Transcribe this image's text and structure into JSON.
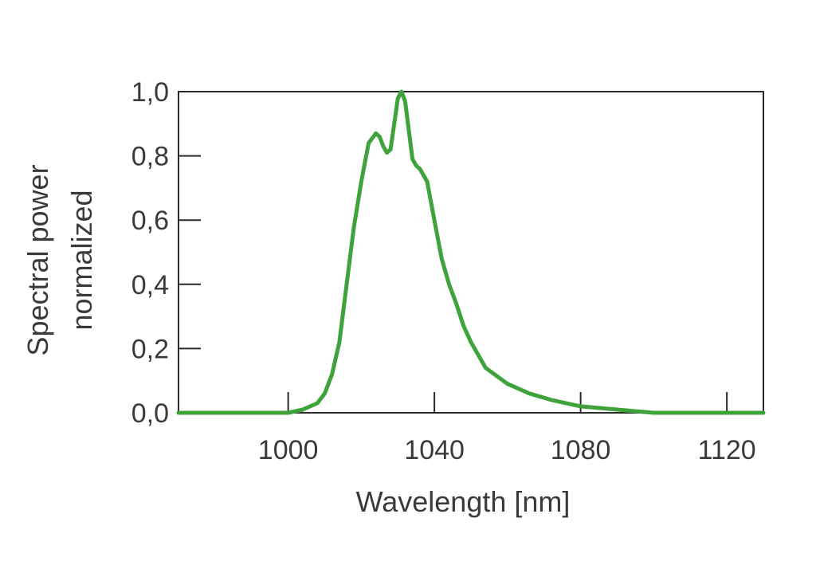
{
  "chart_data": {
    "type": "line",
    "title": "",
    "xlabel": "Wavelength [nm]",
    "ylabel_lines": [
      "Spectral power",
      "normalized"
    ],
    "xlim": [
      970,
      1130
    ],
    "ylim": [
      0,
      1.0
    ],
    "x_ticks": [
      1000,
      1040,
      1080,
      1120
    ],
    "x_tick_labels": [
      "1000",
      "1040",
      "1080",
      "1120"
    ],
    "y_ticks": [
      0,
      0.2,
      0.4,
      0.6,
      0.8,
      1.0
    ],
    "y_tick_labels": [
      "0,0",
      "0,2",
      "0,4",
      "0,6",
      "0,8",
      "1,0"
    ],
    "grid": false,
    "series": [
      {
        "color": "#3da33a",
        "x": [
          970,
          1000,
          1004,
          1008,
          1010,
          1012,
          1014,
          1016,
          1018,
          1020,
          1022,
          1024,
          1025,
          1026,
          1027,
          1028,
          1029,
          1030,
          1031,
          1032,
          1033,
          1034,
          1035,
          1036,
          1038,
          1040,
          1042,
          1044,
          1046,
          1048,
          1050,
          1054,
          1060,
          1066,
          1072,
          1080,
          1090,
          1100,
          1130
        ],
        "y": [
          0.0,
          0.0,
          0.01,
          0.03,
          0.06,
          0.12,
          0.22,
          0.4,
          0.58,
          0.72,
          0.84,
          0.87,
          0.86,
          0.83,
          0.81,
          0.82,
          0.9,
          0.98,
          1.0,
          0.97,
          0.88,
          0.79,
          0.77,
          0.76,
          0.72,
          0.6,
          0.48,
          0.4,
          0.34,
          0.27,
          0.22,
          0.14,
          0.09,
          0.06,
          0.04,
          0.02,
          0.01,
          0.0,
          0.0
        ]
      }
    ]
  }
}
